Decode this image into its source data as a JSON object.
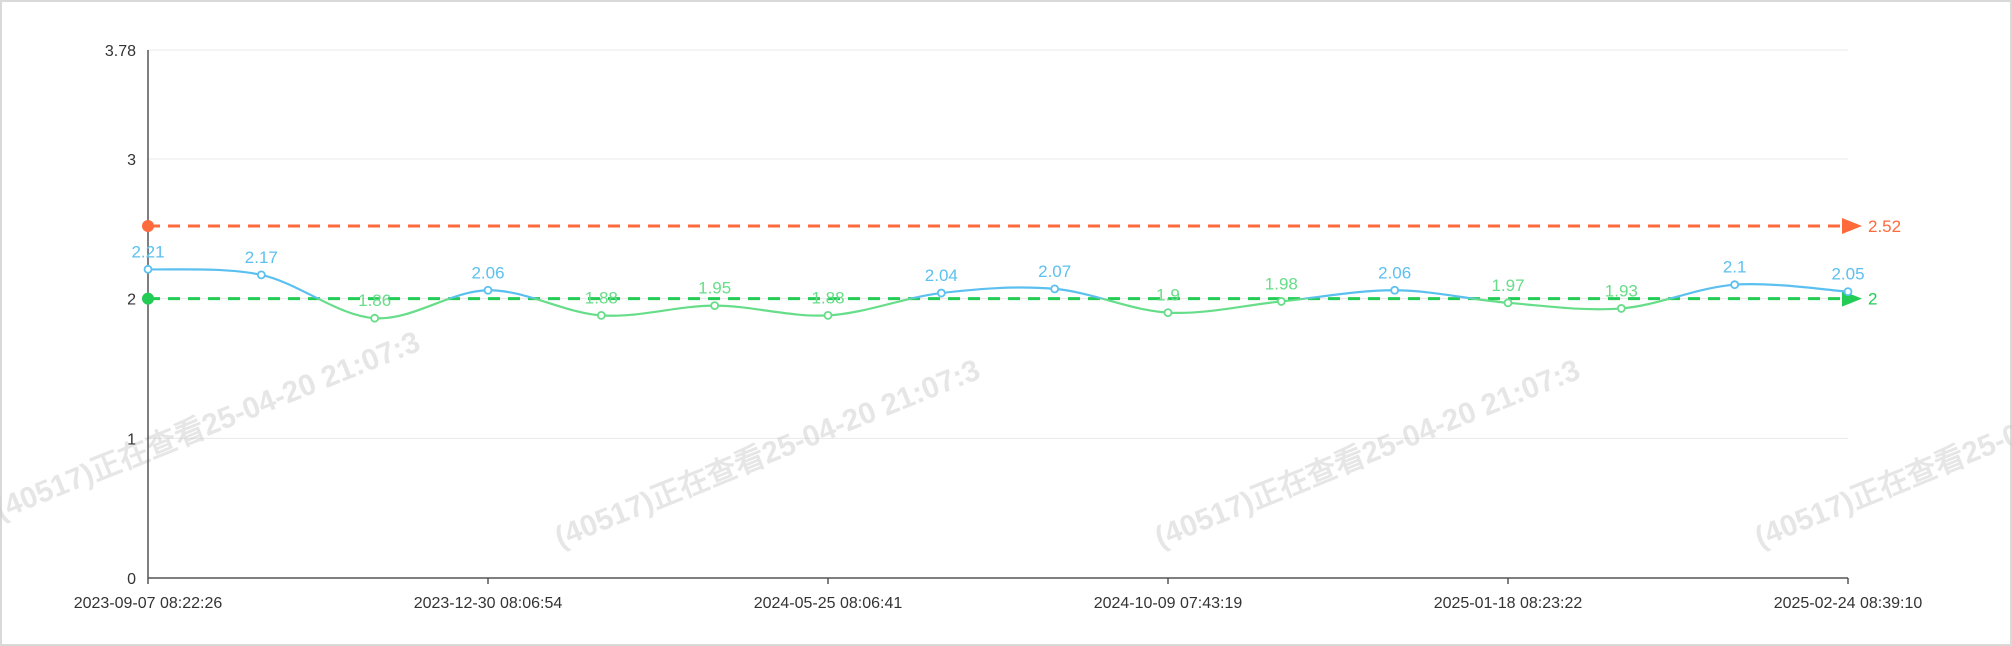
{
  "chart_data": {
    "type": "line",
    "ylim": [
      0,
      3.78
    ],
    "y_ticks": [
      "0",
      "1",
      "2",
      "3",
      "3.78"
    ],
    "x_tick_labels": [
      "2023-09-07 08:22:26",
      "2023-12-30 08:06:54",
      "2024-05-25 08:06:41",
      "2024-10-09 07:43:19",
      "2025-01-18 08:23:22",
      "2025-02-24 08:39:10"
    ],
    "grid": true,
    "values": [
      2.21,
      2.17,
      1.86,
      2.06,
      1.88,
      1.95,
      1.88,
      2.04,
      2.07,
      1.9,
      1.98,
      2.06,
      1.97,
      1.93,
      2.1,
      2.05
    ],
    "value_labels": [
      "2.21",
      "2.17",
      "1.86",
      "2.06",
      "1.88",
      "1.95",
      "1.88",
      "2.04",
      "2.07",
      "1.9",
      "1.98",
      "2.06",
      "1.97",
      "1.93",
      "2.1",
      "2.05"
    ],
    "reference_lines": [
      {
        "value": 2.52,
        "label": "2.52",
        "color": "#ff6a3d"
      },
      {
        "value": 2,
        "label": "2",
        "color": "#22cc55"
      }
    ],
    "colors": {
      "above": "#5bc0f0",
      "below": "#66dd88",
      "grid": "#e8e8e8",
      "axis": "#555555"
    },
    "watermark": "(40517)正在查看25-04-20 21:07:3"
  }
}
